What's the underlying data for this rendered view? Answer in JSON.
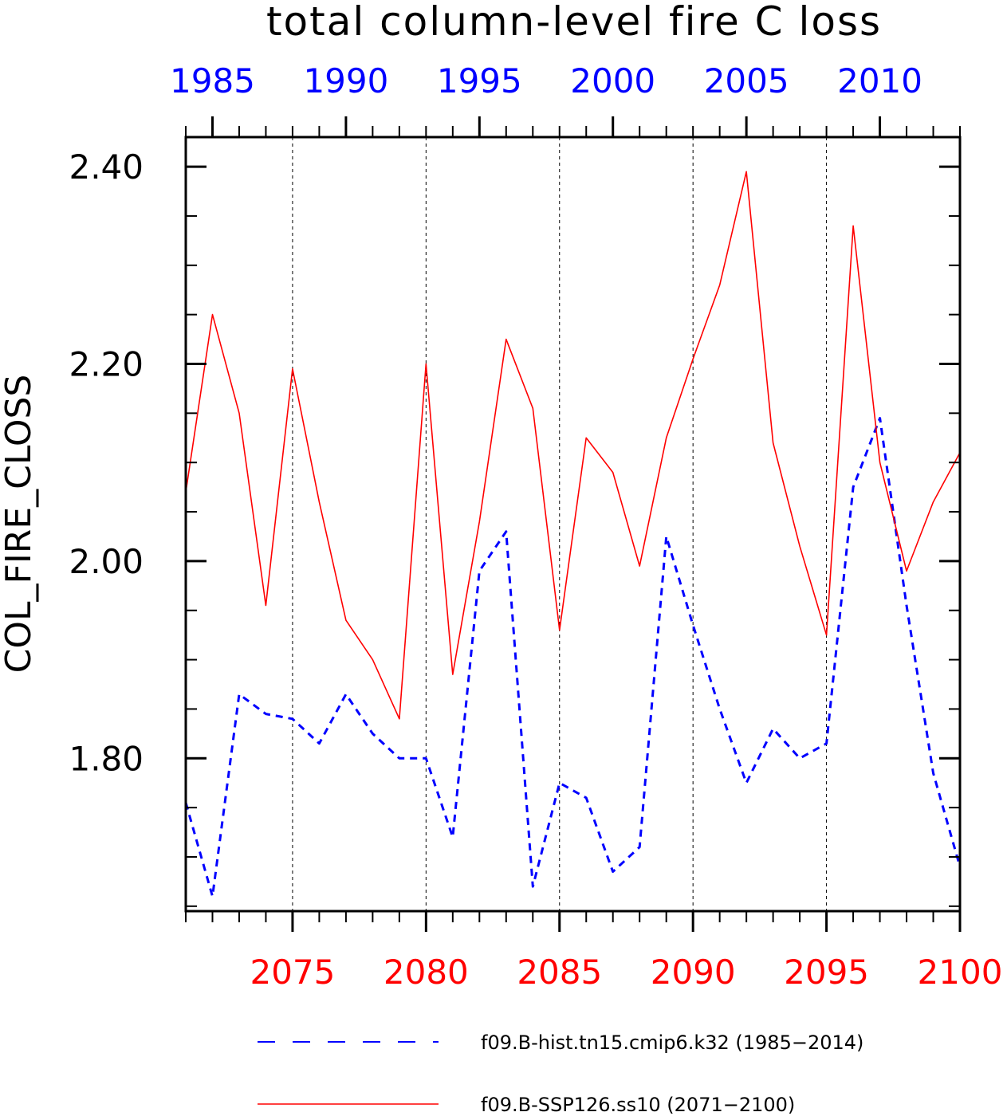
{
  "chart_data": {
    "type": "line",
    "title": "total column-level fire C loss",
    "ylabel": "COL_FIRE_CLOSS",
    "ylim": [
      1.645,
      2.43
    ],
    "yticks": [
      1.8,
      2.0,
      2.2,
      2.4
    ],
    "ytick_labels": [
      "1.80",
      "2.00",
      "2.20",
      "2.40"
    ],
    "grid": "vertical dashed lines at major x ticks",
    "legend_placement": "bottom",
    "top_axis": {
      "color": "#0000ff",
      "range": [
        1984,
        2013
      ],
      "ticks": [
        1985,
        1990,
        1995,
        2000,
        2005,
        2010
      ],
      "labels": [
        "1985",
        "1990",
        "1995",
        "2000",
        "2005",
        "2010"
      ]
    },
    "bottom_axis": {
      "color": "#ff0000",
      "range": [
        2071,
        2100
      ],
      "ticks": [
        2075,
        2080,
        2085,
        2090,
        2095,
        2100
      ],
      "labels": [
        "2075",
        "2080",
        "2085",
        "2090",
        "2095",
        "2100"
      ]
    },
    "series": [
      {
        "name": "f09.B-hist.tn15.cmip6.k32 (1985−2014)",
        "color": "#0000ff",
        "style": "dashed",
        "axis": "top",
        "x": [
          1984,
          1985,
          1986,
          1987,
          1988,
          1989,
          1990,
          1991,
          1992,
          1993,
          1994,
          1995,
          1996,
          1997,
          1998,
          1999,
          2000,
          2001,
          2002,
          2003,
          2004,
          2005,
          2006,
          2007,
          2008,
          2009,
          2010,
          2011,
          2012,
          2013
        ],
        "values": [
          1.755,
          1.66,
          1.865,
          1.845,
          1.84,
          1.815,
          1.865,
          1.825,
          1.8,
          1.8,
          1.72,
          1.99,
          2.03,
          1.67,
          1.775,
          1.76,
          1.685,
          1.71,
          2.025,
          1.935,
          1.85,
          1.775,
          1.83,
          1.8,
          1.815,
          2.075,
          2.145,
          1.955,
          1.785,
          1.69
        ]
      },
      {
        "name": "f09.B-SSP126.ss10 (2071−2100)",
        "color": "#ff0000",
        "style": "solid",
        "axis": "bottom",
        "x": [
          2071,
          2072,
          2073,
          2074,
          2075,
          2076,
          2077,
          2078,
          2079,
          2080,
          2081,
          2082,
          2083,
          2084,
          2085,
          2086,
          2087,
          2088,
          2089,
          2090,
          2091,
          2092,
          2093,
          2094,
          2095,
          2096,
          2097,
          2098,
          2099,
          2100
        ],
        "values": [
          2.07,
          2.25,
          2.15,
          1.955,
          2.195,
          2.06,
          1.94,
          1.9,
          1.84,
          2.2,
          1.885,
          2.04,
          2.225,
          2.155,
          1.93,
          2.125,
          2.09,
          1.995,
          2.125,
          2.205,
          2.28,
          2.395,
          2.12,
          2.015,
          1.925,
          2.34,
          2.1,
          1.99,
          2.06,
          2.11
        ]
      }
    ]
  }
}
